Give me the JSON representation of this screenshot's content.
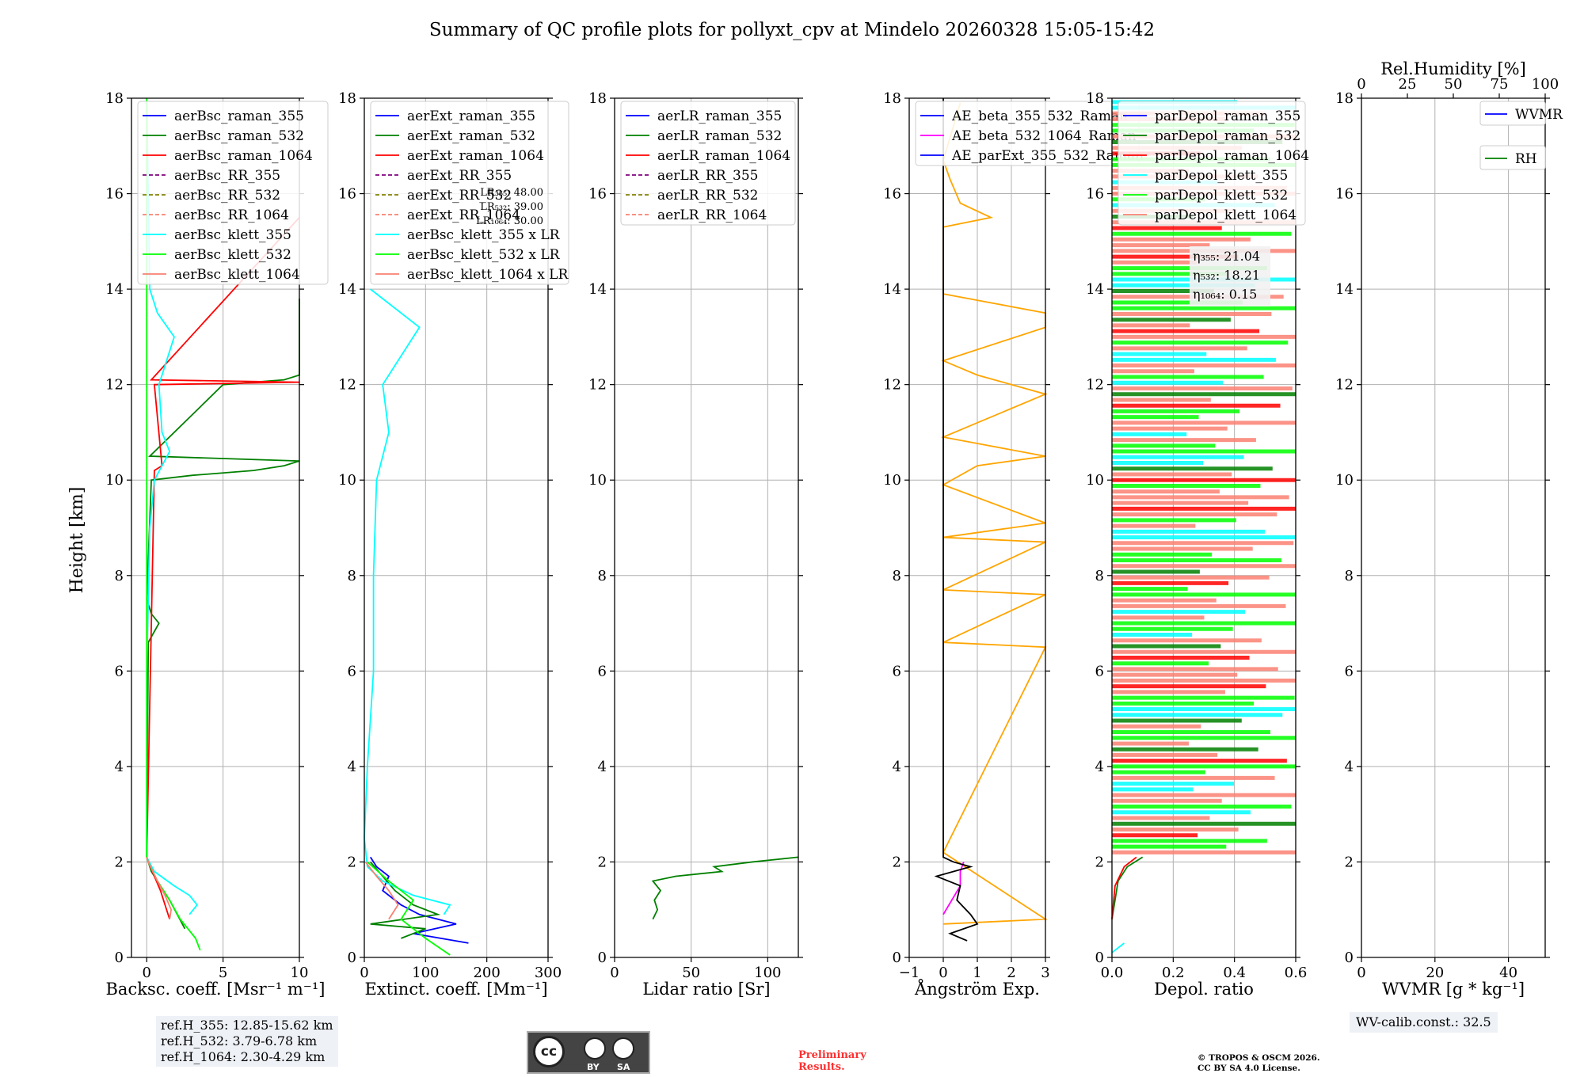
{
  "title": "Summary of QC profile plots for pollyxt_cpv at Mindelo 20260328 15:05-15:42",
  "ylabel": "Height [km]",
  "colors": {
    "blue": "#0000ff",
    "green": "#008000",
    "red": "#ff0000",
    "purple": "#800080",
    "olive": "#808000",
    "salmon": "#fa8072",
    "cyan": "#00ffff",
    "lime": "#00ff00",
    "orange": "#ffa500",
    "magenta": "#ff00ff",
    "black": "#000000"
  },
  "chart_data": [
    {
      "type": "line",
      "name": "backscatter",
      "xlabel": "Backsc. coeff. [Msr⁻¹ m⁻¹]",
      "xlim": [
        -1,
        10
      ],
      "xticks": [
        "0",
        "5",
        "10"
      ],
      "xtick_values": [
        0,
        5,
        10
      ],
      "ylim": [
        0,
        18
      ],
      "legend": [
        "aerBsc_raman_355",
        "aerBsc_raman_532",
        "aerBsc_raman_1064",
        "aerBsc_RR_355",
        "aerBsc_RR_532",
        "aerBsc_RR_1064",
        "aerBsc_klett_355",
        "aerBsc_klett_532",
        "aerBsc_klett_1064"
      ],
      "series": [
        {
          "name": "aerBsc_raman_532",
          "color": "green",
          "h": [
            0.6,
            0.9,
            1.2,
            1.5,
            1.8,
            2.0,
            2.1,
            2.5,
            6.6,
            7.0,
            7.2,
            7.5,
            10.0,
            10.1,
            10.2,
            10.3,
            10.4,
            10.5,
            12.0,
            12.1,
            12.2,
            13.8
          ],
          "v": [
            2.5,
            2.0,
            1.5,
            0.9,
            0.3,
            0.1,
            0,
            0,
            0.1,
            0.8,
            0.3,
            0,
            0.3,
            3,
            7,
            9,
            10,
            0.2,
            5,
            9,
            10,
            10
          ]
        },
        {
          "name": "aerBsc_raman_1064",
          "color": "red",
          "h": [
            0.8,
            1.1,
            1.4,
            1.7,
            2.0,
            2.1,
            10.2,
            10.3,
            12.0,
            12.05,
            12.1,
            15.5
          ],
          "v": [
            1.5,
            1.2,
            0.9,
            0.5,
            0.1,
            0,
            0.5,
            1,
            0.5,
            10,
            0.3,
            10
          ]
        },
        {
          "name": "aerBsc_klett_355",
          "color": "cyan",
          "h": [
            0.9,
            1.1,
            1.3,
            1.5,
            1.8,
            2.1,
            3,
            6,
            9,
            10.0,
            10.6,
            11,
            12,
            13,
            13.5,
            14,
            18
          ],
          "v": [
            2.8,
            3.3,
            2.8,
            1.8,
            0.5,
            0,
            0,
            0,
            0.2,
            0.5,
            1.5,
            1.0,
            0.8,
            1.8,
            0.7,
            0.2,
            0
          ]
        },
        {
          "name": "aerBsc_klett_532",
          "color": "lime",
          "h": [
            0.15,
            0.4,
            0.8,
            1.2,
            1.6,
            2.0,
            2.1,
            18
          ],
          "v": [
            3.5,
            3.2,
            2.2,
            1.5,
            0.7,
            0.1,
            0,
            0
          ]
        },
        {
          "name": "aerBsc_klett_1064",
          "color": "salmon",
          "h": [
            0.8,
            1.0,
            1.3,
            1.6,
            2.0,
            2.1
          ],
          "v": [
            1.5,
            1.6,
            1.2,
            0.7,
            0.1,
            0
          ]
        }
      ],
      "annotations": []
    },
    {
      "type": "line",
      "name": "extinction",
      "xlabel": "Extinct. coeff. [Mm⁻¹]",
      "xlim": [
        0,
        300
      ],
      "xticks": [
        "0",
        "100",
        "200",
        "300"
      ],
      "xtick_values": [
        0,
        100,
        200,
        300
      ],
      "ylim": [
        0,
        18
      ],
      "legend": [
        "aerExt_raman_355",
        "aerExt_raman_532",
        "aerExt_raman_1064",
        "aerExt_RR_355",
        "aerExt_RR_532",
        "aerExt_RR_1064",
        "aerBsc_klett_355 x LR",
        "aerBsc_klett_532 x LR",
        "aerBsc_klett_1064 x LR"
      ],
      "lr_labels": [
        "LR₃₅₅: 48.00",
        "LR₅₃₂: 39.00",
        "LR₁₀₆₄: 30.00"
      ],
      "series": [
        {
          "name": "aerExt_raman_355",
          "color": "blue",
          "h": [
            0.3,
            0.5,
            0.7,
            0.9,
            1.1,
            1.4,
            1.7,
            1.9,
            2.1
          ],
          "v": [
            170,
            80,
            150,
            90,
            60,
            30,
            40,
            20,
            10
          ]
        },
        {
          "name": "aerExt_raman_532",
          "color": "green",
          "h": [
            0.4,
            0.6,
            0.7,
            0.9,
            1.1,
            1.4,
            1.7,
            2.0
          ],
          "v": [
            60,
            100,
            10,
            120,
            80,
            50,
            30,
            10
          ]
        },
        {
          "name": "aerBsc_klett_355 x LR",
          "color": "cyan",
          "h": [
            0.9,
            1.1,
            1.3,
            1.6,
            1.9,
            2.5,
            4,
            6,
            8,
            10,
            11,
            12,
            13,
            13.2,
            14
          ],
          "v": [
            130,
            140,
            80,
            30,
            5,
            0,
            5,
            15,
            15,
            20,
            40,
            30,
            80,
            90,
            10
          ]
        },
        {
          "name": "aerBsc_klett_532 x LR",
          "color": "lime",
          "h": [
            0.05,
            0.4,
            0.8,
            1.2,
            1.6,
            2.0
          ],
          "v": [
            140,
            100,
            60,
            80,
            40,
            5
          ]
        },
        {
          "name": "aerBsc_klett_1064 x LR",
          "color": "salmon",
          "h": [
            0.8,
            1.1,
            1.4,
            1.7,
            2.0
          ],
          "v": [
            40,
            55,
            40,
            20,
            2
          ]
        }
      ]
    },
    {
      "type": "line",
      "name": "lidar_ratio",
      "xlabel": "Lidar ratio [Sr]",
      "xlim": [
        0,
        120
      ],
      "xticks": [
        "0",
        "50",
        "100"
      ],
      "xtick_values": [
        0,
        50,
        100
      ],
      "ylim": [
        0,
        18
      ],
      "legend": [
        "aerLR_raman_355",
        "aerLR_raman_532",
        "aerLR_raman_1064",
        "aerLR_RR_355",
        "aerLR_RR_532",
        "aerLR_RR_1064"
      ],
      "series": [
        {
          "name": "aerLR_raman_532",
          "color": "green",
          "h": [
            0.8,
            1.0,
            1.2,
            1.4,
            1.6,
            1.7,
            1.8,
            1.9,
            2.0,
            2.1
          ],
          "v": [
            25,
            28,
            26,
            30,
            25,
            40,
            70,
            65,
            90,
            120
          ]
        }
      ]
    },
    {
      "type": "line",
      "name": "angstrom",
      "xlabel": "Ångström Exp.",
      "xlim": [
        -1,
        3
      ],
      "xticks": [
        "−1",
        "0",
        "1",
        "2",
        "3"
      ],
      "xtick_values": [
        -1,
        0,
        1,
        2,
        3
      ],
      "ylim": [
        0,
        18
      ],
      "legend": [
        "AE_beta_355_532_Raman",
        "AE_beta_532_1064_Raman",
        "AE_parExt_355_532_Raman"
      ],
      "series": [
        {
          "name": "AE_beta_355_532_Raman",
          "color": "orange",
          "h": [
            0.7,
            0.8,
            2.2,
            6.5,
            6.6,
            7.6,
            7.7,
            8.7,
            8.8,
            9.1,
            9.9,
            10.3,
            10.5,
            10.9,
            11.8,
            12.2,
            12.5,
            13.2,
            13.5,
            13.9,
            15.3,
            15.5,
            15.8,
            16.3,
            16.7,
            17.9
          ],
          "v": [
            0,
            3,
            0,
            3,
            0,
            3,
            0,
            3,
            0,
            3,
            0,
            1,
            3,
            0,
            3,
            1,
            0,
            3,
            3,
            0,
            0,
            1.4,
            0.5,
            0.2,
            0,
            0.5
          ]
        },
        {
          "name": "AE_beta_532_1064_Raman",
          "color": "magenta",
          "h": [
            0.9,
            1.5,
            1.8,
            2.0
          ],
          "v": [
            0,
            0.5,
            0.5,
            0.6
          ]
        },
        {
          "name": "AE_parExt_355_532_Raman",
          "color": "black",
          "h": [
            0.35,
            0.5,
            0.7,
            0.9,
            1.2,
            1.5,
            1.7,
            1.9,
            2.0,
            2.1,
            18
          ],
          "v": [
            0.7,
            0.2,
            1.0,
            0.8,
            0.4,
            0.5,
            -0.2,
            0.8,
            0.3,
            0,
            0
          ]
        }
      ]
    },
    {
      "type": "line",
      "name": "depol",
      "xlabel": "Depol. ratio",
      "xlim": [
        0,
        0.6
      ],
      "xticks": [
        "0.0",
        "0.2",
        "0.4",
        "0.6"
      ],
      "xtick_values": [
        0,
        0.2,
        0.4,
        0.6
      ],
      "ylim": [
        0,
        18
      ],
      "legend": [
        "parDepol_raman_355",
        "parDepol_raman_532",
        "parDepol_raman_1064",
        "parDepol_klett_355",
        "parDepol_klett_532",
        "parDepol_klett_1064"
      ],
      "eta_labels": [
        "η₃₅₅: 21.04",
        "η₅₃₂: 18.21",
        "η₁₀₆₄: 0.15"
      ],
      "noise_from_km": 2.2,
      "noise_to_km": 18,
      "series": [
        {
          "name": "parDepol_raman_532",
          "color": "green",
          "h": [
            0.8,
            1.2,
            1.6,
            1.9,
            2.1
          ],
          "v": [
            0.0,
            0.01,
            0.02,
            0.05,
            0.1
          ]
        },
        {
          "name": "parDepol_raman_1064",
          "color": "red",
          "h": [
            0.8,
            1.5,
            1.9,
            2.1
          ],
          "v": [
            0.0,
            0.01,
            0.04,
            0.08
          ]
        },
        {
          "name": "parDepol_klett_355",
          "color": "cyan",
          "h": [
            0.1,
            0.3
          ],
          "v": [
            0.0,
            0.04
          ]
        }
      ]
    },
    {
      "type": "line",
      "name": "wvmr",
      "xlabel": "WVMR [g * kg⁻¹]",
      "xlim": [
        0,
        50
      ],
      "xticks": [
        "0",
        "20",
        "40"
      ],
      "xtick_values": [
        0,
        20,
        40
      ],
      "ylim": [
        0,
        18
      ],
      "top_label": "Rel.Humidity [%]",
      "top_ticks": [
        "0",
        "25",
        "50",
        "75",
        "100"
      ],
      "top_tick_values": [
        0,
        25,
        50,
        75,
        100
      ],
      "legend": [
        "WVMR",
        "RH"
      ],
      "series": []
    }
  ],
  "ref_box": [
    "ref.H_355: 12.85-15.62 km",
    "ref.H_532: 3.79-6.78 km",
    "ref.H_1064: 2.30-4.29 km"
  ],
  "wv_box": "WV-calib.const.: 32.5",
  "license_badge": {
    "cc": "cc",
    "by": "BY",
    "sa": "SA"
  },
  "preliminary": [
    "Preliminary",
    "Results."
  ],
  "copyright": [
    "© TROPOS & OSCM 2026.",
    "CC BY SA 4.0 License."
  ]
}
